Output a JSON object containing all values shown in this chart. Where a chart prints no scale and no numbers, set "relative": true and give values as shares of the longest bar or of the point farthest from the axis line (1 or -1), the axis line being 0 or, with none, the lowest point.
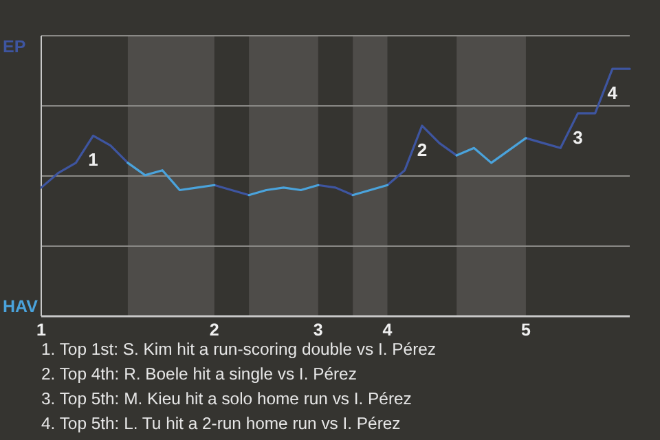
{
  "chart_data": {
    "type": "line",
    "relative": true,
    "grid": true,
    "legend": "left",
    "categories": [
      "1",
      null,
      null,
      null,
      null,
      null,
      null,
      null,
      null,
      null,
      "2",
      null,
      null,
      null,
      null,
      null,
      "3",
      null,
      null,
      null,
      "4",
      null,
      null,
      null,
      null,
      null,
      null,
      null,
      "5",
      null,
      null,
      null,
      null,
      null,
      null
    ],
    "series": [
      {
        "name": "EP",
        "color": "#3e55a0",
        "values": [
          0.52,
          0.58,
          0.62,
          0.73,
          0.69,
          0.62,
          null,
          null,
          null,
          null,
          0.53,
          0.51,
          0.49,
          null,
          null,
          null,
          0.53,
          0.52,
          0.49,
          null,
          0.53,
          0.59,
          0.77,
          0.7,
          0.65,
          null,
          null,
          null,
          0.72,
          0.7,
          0.68,
          0.82,
          0.82,
          1,
          1
        ]
      },
      {
        "name": "HAV",
        "color": "#4aa3dc",
        "values": [
          null,
          null,
          null,
          null,
          null,
          0.62,
          0.57,
          0.59,
          0.51,
          0.52,
          0.53,
          null,
          0.49,
          0.51,
          0.52,
          0.51,
          0.53,
          null,
          0.49,
          0.51,
          0.53,
          null,
          null,
          null,
          0.65,
          0.68,
          0.62,
          0.67,
          0.72,
          null,
          null,
          null,
          null,
          null,
          null
        ]
      }
    ],
    "annotations": [
      {
        "text": "1",
        "y": 0.73
      },
      {
        "text": "2",
        "y": 0.77
      },
      {
        "text": "3",
        "y": 0.82
      },
      {
        "text": "4",
        "y": 1
      },
      "1. Top 1st: S. Kim hit a run-scoring double vs I. Pérez",
      "2. Top 4th: R. Boele hit a single vs I. Pérez",
      "3. Top 5th: M. Kieu hit a solo home run vs I. Pérez",
      "4. Top 5th: L. Tu hit a 2-run home run vs I. Pérez"
    ]
  }
}
